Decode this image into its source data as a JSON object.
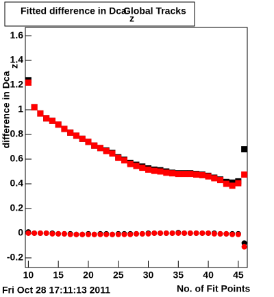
{
  "chart_data": {
    "type": "scatter",
    "title": "Fitted difference in Dca",
    "title_subscript": "z",
    "title_suffix": "Global Tracks",
    "y_label": "difference in Dca",
    "y_label_subscript": "z",
    "x_label": "No. of Fit Points",
    "timestamp": "Fri Oct 28 17:11:13 2011",
    "x": [
      10,
      11,
      12,
      13,
      14,
      15,
      16,
      17,
      18,
      19,
      20,
      21,
      22,
      23,
      24,
      25,
      26,
      27,
      28,
      29,
      30,
      31,
      32,
      33,
      34,
      35,
      36,
      37,
      38,
      39,
      40,
      41,
      42,
      43,
      44,
      45,
      46
    ],
    "series": [
      {
        "color": "#000000",
        "marker": "square",
        "values": [
          1.24,
          1.02,
          0.97,
          0.93,
          0.91,
          0.88,
          0.845,
          0.815,
          0.79,
          0.765,
          0.74,
          0.71,
          0.69,
          0.67,
          0.65,
          0.615,
          0.595,
          0.57,
          0.555,
          0.54,
          0.525,
          0.515,
          0.51,
          0.5,
          0.49,
          0.485,
          0.485,
          0.485,
          0.48,
          0.475,
          0.465,
          0.45,
          0.435,
          0.415,
          0.41,
          0.42,
          0.68
        ]
      },
      {
        "color": "#ff0000",
        "marker": "square",
        "values": [
          1.22,
          1.02,
          0.97,
          0.93,
          0.91,
          0.88,
          0.845,
          0.815,
          0.79,
          0.765,
          0.74,
          0.71,
          0.69,
          0.665,
          0.645,
          0.61,
          0.59,
          0.56,
          0.545,
          0.53,
          0.515,
          0.505,
          0.5,
          0.49,
          0.485,
          0.48,
          0.48,
          0.48,
          0.475,
          0.47,
          0.46,
          0.445,
          0.43,
          0.4,
          0.385,
          0.405,
          0.475
        ]
      },
      {
        "color": "#000000",
        "marker": "circle",
        "values": [
          0.01,
          0.0,
          0.0,
          0.0,
          0.0,
          -0.005,
          -0.005,
          -0.005,
          -0.01,
          -0.01,
          -0.005,
          -0.01,
          -0.005,
          -0.005,
          -0.01,
          -0.005,
          -0.005,
          -0.005,
          -0.005,
          -0.005,
          0.0,
          0.0,
          0.0,
          0.0,
          0.0,
          0.005,
          0.0,
          0.0,
          0.0,
          0.0,
          0.0,
          0.0,
          -0.005,
          -0.005,
          -0.005,
          -0.005,
          -0.08
        ]
      },
      {
        "color": "#ff0000",
        "marker": "circle",
        "values": [
          0.0,
          0.0,
          0.0,
          0.0,
          -0.005,
          -0.005,
          -0.005,
          -0.01,
          -0.01,
          -0.01,
          -0.01,
          -0.01,
          -0.01,
          -0.01,
          -0.01,
          -0.01,
          -0.01,
          -0.01,
          -0.005,
          -0.005,
          -0.005,
          0.0,
          0.0,
          0.0,
          0.0,
          0.0,
          0.0,
          0.0,
          0.0,
          0.0,
          0.0,
          -0.005,
          -0.005,
          -0.005,
          -0.01,
          -0.01,
          -0.11
        ]
      }
    ],
    "xlim": [
      9.5,
      46.5
    ],
    "xticks": [
      10,
      15,
      20,
      25,
      30,
      35,
      40,
      45
    ],
    "ylim": [
      -0.278,
      1.667
    ],
    "yticks": [
      -0.2,
      0,
      0.2,
      0.4,
      0.6,
      0.8,
      1,
      1.2,
      1.4,
      1.6
    ],
    "grid": false
  }
}
